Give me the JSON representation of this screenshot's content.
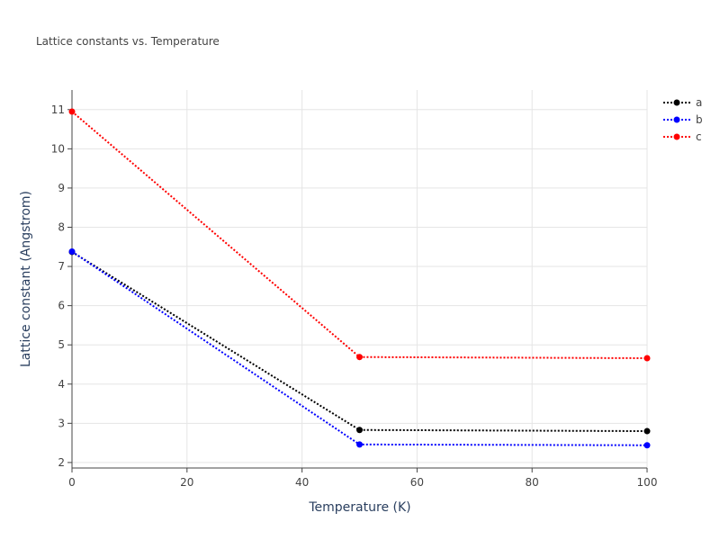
{
  "chart_data": {
    "type": "line",
    "title": "Lattice constants vs. Temperature",
    "x_label": "Temperature (K)",
    "y_label": "Lattice constant (Angstrom)",
    "x": [
      0,
      50,
      100
    ],
    "series": [
      {
        "name": "a",
        "color": "#000000",
        "values": [
          7.37,
          2.83,
          2.8
        ]
      },
      {
        "name": "b",
        "color": "#0000ff",
        "values": [
          7.38,
          2.46,
          2.44
        ]
      },
      {
        "name": "c",
        "color": "#ff0000",
        "values": [
          10.95,
          4.69,
          4.66
        ]
      }
    ],
    "xlim": [
      0,
      100
    ],
    "xticks": [
      0,
      20,
      40,
      60,
      80,
      100
    ],
    "ylim": [
      1.86,
      11.5
    ],
    "yticks": [
      2,
      3,
      4,
      5,
      6,
      7,
      8,
      9,
      10,
      11
    ],
    "grid": true,
    "legend": "top-right"
  }
}
